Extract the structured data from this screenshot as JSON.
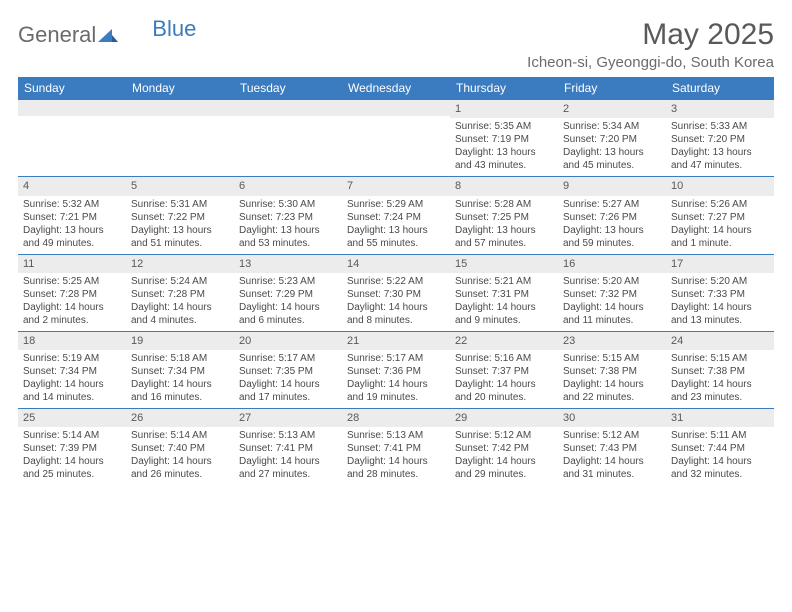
{
  "logo": {
    "part1": "General",
    "part2": "Blue"
  },
  "title": "May 2025",
  "location": "Icheon-si, Gyeonggi-do, South Korea",
  "colors": {
    "header_bg": "#3b7bbf",
    "header_text": "#ffffff",
    "daynum_bg": "#ececec",
    "border": "#3b7bbf",
    "body_text": "#4a4a4a",
    "title_text": "#595959"
  },
  "day_names": [
    "Sunday",
    "Monday",
    "Tuesday",
    "Wednesday",
    "Thursday",
    "Friday",
    "Saturday"
  ],
  "weeks": [
    [
      {
        "day": "",
        "sunrise": "",
        "sunset": "",
        "daylight": ""
      },
      {
        "day": "",
        "sunrise": "",
        "sunset": "",
        "daylight": ""
      },
      {
        "day": "",
        "sunrise": "",
        "sunset": "",
        "daylight": ""
      },
      {
        "day": "",
        "sunrise": "",
        "sunset": "",
        "daylight": ""
      },
      {
        "day": "1",
        "sunrise": "Sunrise: 5:35 AM",
        "sunset": "Sunset: 7:19 PM",
        "daylight": "Daylight: 13 hours and 43 minutes."
      },
      {
        "day": "2",
        "sunrise": "Sunrise: 5:34 AM",
        "sunset": "Sunset: 7:20 PM",
        "daylight": "Daylight: 13 hours and 45 minutes."
      },
      {
        "day": "3",
        "sunrise": "Sunrise: 5:33 AM",
        "sunset": "Sunset: 7:20 PM",
        "daylight": "Daylight: 13 hours and 47 minutes."
      }
    ],
    [
      {
        "day": "4",
        "sunrise": "Sunrise: 5:32 AM",
        "sunset": "Sunset: 7:21 PM",
        "daylight": "Daylight: 13 hours and 49 minutes."
      },
      {
        "day": "5",
        "sunrise": "Sunrise: 5:31 AM",
        "sunset": "Sunset: 7:22 PM",
        "daylight": "Daylight: 13 hours and 51 minutes."
      },
      {
        "day": "6",
        "sunrise": "Sunrise: 5:30 AM",
        "sunset": "Sunset: 7:23 PM",
        "daylight": "Daylight: 13 hours and 53 minutes."
      },
      {
        "day": "7",
        "sunrise": "Sunrise: 5:29 AM",
        "sunset": "Sunset: 7:24 PM",
        "daylight": "Daylight: 13 hours and 55 minutes."
      },
      {
        "day": "8",
        "sunrise": "Sunrise: 5:28 AM",
        "sunset": "Sunset: 7:25 PM",
        "daylight": "Daylight: 13 hours and 57 minutes."
      },
      {
        "day": "9",
        "sunrise": "Sunrise: 5:27 AM",
        "sunset": "Sunset: 7:26 PM",
        "daylight": "Daylight: 13 hours and 59 minutes."
      },
      {
        "day": "10",
        "sunrise": "Sunrise: 5:26 AM",
        "sunset": "Sunset: 7:27 PM",
        "daylight": "Daylight: 14 hours and 1 minute."
      }
    ],
    [
      {
        "day": "11",
        "sunrise": "Sunrise: 5:25 AM",
        "sunset": "Sunset: 7:28 PM",
        "daylight": "Daylight: 14 hours and 2 minutes."
      },
      {
        "day": "12",
        "sunrise": "Sunrise: 5:24 AM",
        "sunset": "Sunset: 7:28 PM",
        "daylight": "Daylight: 14 hours and 4 minutes."
      },
      {
        "day": "13",
        "sunrise": "Sunrise: 5:23 AM",
        "sunset": "Sunset: 7:29 PM",
        "daylight": "Daylight: 14 hours and 6 minutes."
      },
      {
        "day": "14",
        "sunrise": "Sunrise: 5:22 AM",
        "sunset": "Sunset: 7:30 PM",
        "daylight": "Daylight: 14 hours and 8 minutes."
      },
      {
        "day": "15",
        "sunrise": "Sunrise: 5:21 AM",
        "sunset": "Sunset: 7:31 PM",
        "daylight": "Daylight: 14 hours and 9 minutes."
      },
      {
        "day": "16",
        "sunrise": "Sunrise: 5:20 AM",
        "sunset": "Sunset: 7:32 PM",
        "daylight": "Daylight: 14 hours and 11 minutes."
      },
      {
        "day": "17",
        "sunrise": "Sunrise: 5:20 AM",
        "sunset": "Sunset: 7:33 PM",
        "daylight": "Daylight: 14 hours and 13 minutes."
      }
    ],
    [
      {
        "day": "18",
        "sunrise": "Sunrise: 5:19 AM",
        "sunset": "Sunset: 7:34 PM",
        "daylight": "Daylight: 14 hours and 14 minutes."
      },
      {
        "day": "19",
        "sunrise": "Sunrise: 5:18 AM",
        "sunset": "Sunset: 7:34 PM",
        "daylight": "Daylight: 14 hours and 16 minutes."
      },
      {
        "day": "20",
        "sunrise": "Sunrise: 5:17 AM",
        "sunset": "Sunset: 7:35 PM",
        "daylight": "Daylight: 14 hours and 17 minutes."
      },
      {
        "day": "21",
        "sunrise": "Sunrise: 5:17 AM",
        "sunset": "Sunset: 7:36 PM",
        "daylight": "Daylight: 14 hours and 19 minutes."
      },
      {
        "day": "22",
        "sunrise": "Sunrise: 5:16 AM",
        "sunset": "Sunset: 7:37 PM",
        "daylight": "Daylight: 14 hours and 20 minutes."
      },
      {
        "day": "23",
        "sunrise": "Sunrise: 5:15 AM",
        "sunset": "Sunset: 7:38 PM",
        "daylight": "Daylight: 14 hours and 22 minutes."
      },
      {
        "day": "24",
        "sunrise": "Sunrise: 5:15 AM",
        "sunset": "Sunset: 7:38 PM",
        "daylight": "Daylight: 14 hours and 23 minutes."
      }
    ],
    [
      {
        "day": "25",
        "sunrise": "Sunrise: 5:14 AM",
        "sunset": "Sunset: 7:39 PM",
        "daylight": "Daylight: 14 hours and 25 minutes."
      },
      {
        "day": "26",
        "sunrise": "Sunrise: 5:14 AM",
        "sunset": "Sunset: 7:40 PM",
        "daylight": "Daylight: 14 hours and 26 minutes."
      },
      {
        "day": "27",
        "sunrise": "Sunrise: 5:13 AM",
        "sunset": "Sunset: 7:41 PM",
        "daylight": "Daylight: 14 hours and 27 minutes."
      },
      {
        "day": "28",
        "sunrise": "Sunrise: 5:13 AM",
        "sunset": "Sunset: 7:41 PM",
        "daylight": "Daylight: 14 hours and 28 minutes."
      },
      {
        "day": "29",
        "sunrise": "Sunrise: 5:12 AM",
        "sunset": "Sunset: 7:42 PM",
        "daylight": "Daylight: 14 hours and 29 minutes."
      },
      {
        "day": "30",
        "sunrise": "Sunrise: 5:12 AM",
        "sunset": "Sunset: 7:43 PM",
        "daylight": "Daylight: 14 hours and 31 minutes."
      },
      {
        "day": "31",
        "sunrise": "Sunrise: 5:11 AM",
        "sunset": "Sunset: 7:44 PM",
        "daylight": "Daylight: 14 hours and 32 minutes."
      }
    ]
  ]
}
